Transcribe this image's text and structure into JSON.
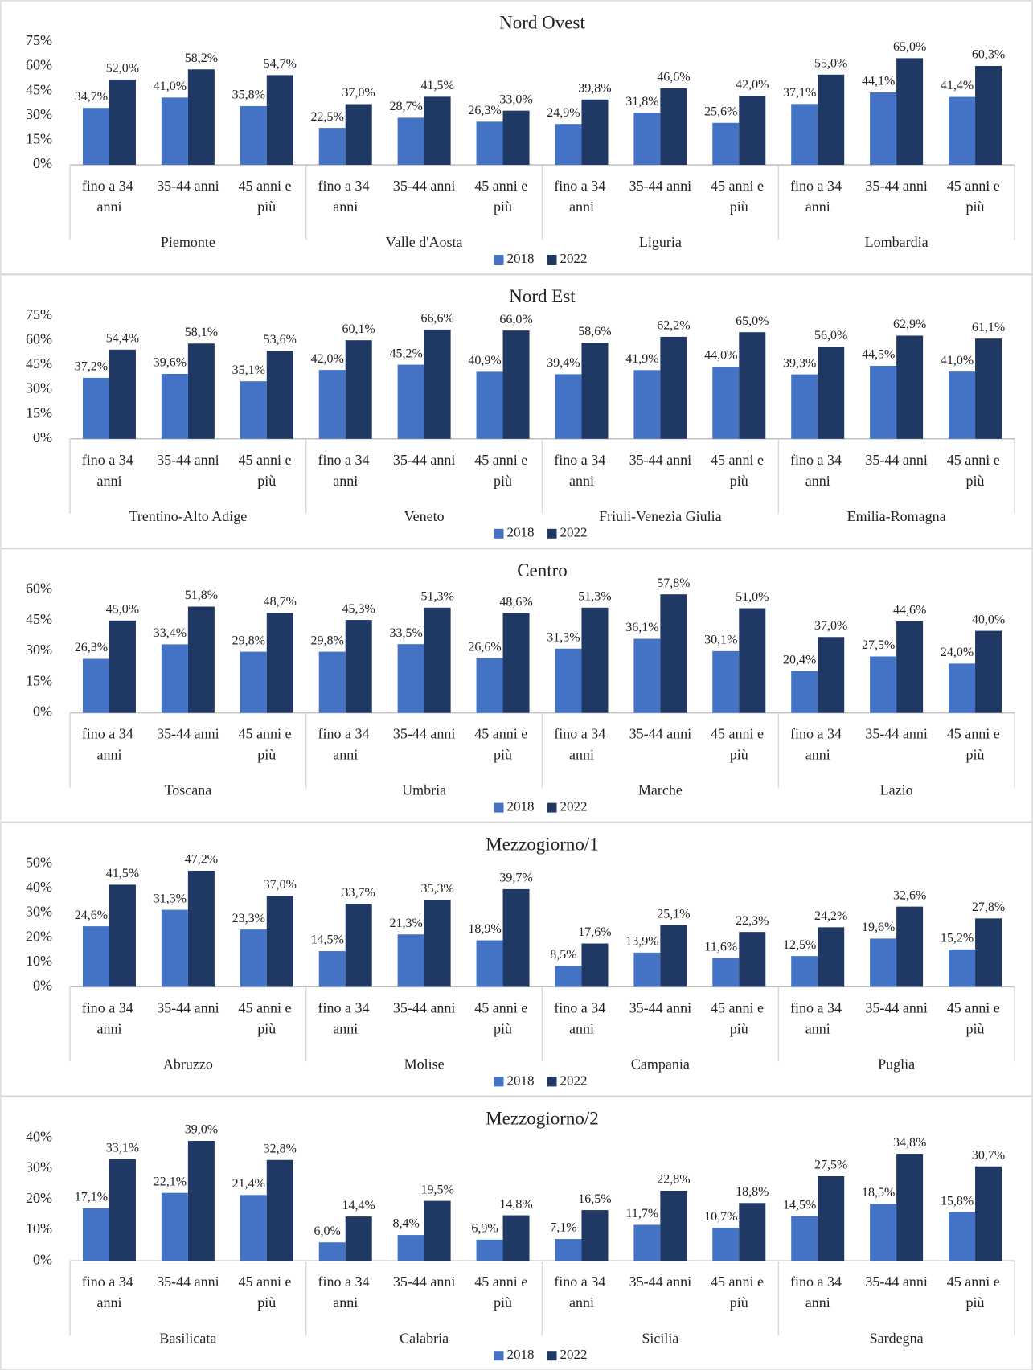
{
  "chart_data": [
    {
      "type": "bar",
      "title": "Nord Ovest",
      "legend": "bottom",
      "categories": [
        "fino a 34 anni",
        "35-44 anni",
        "45 anni e più",
        "fino a 34 anni",
        "35-44 anni",
        "45 anni e più",
        "fino a 34 anni",
        "35-44 anni",
        "45 anni e più",
        "fino a 34 anni",
        "35-44 anni",
        "45 anni e più"
      ],
      "groups": [
        "Piemonte",
        "Valle d'Aosta",
        "Liguria",
        "Lombardia"
      ],
      "ylim": [
        0,
        75
      ],
      "yticks": [
        {
          "value": 0,
          "label": "0%"
        },
        {
          "value": 15,
          "label": "15%"
        },
        {
          "value": 30,
          "label": "30%"
        },
        {
          "value": 45,
          "label": "45%"
        },
        {
          "value": 60,
          "label": "60%"
        },
        {
          "value": 75,
          "label": "75%"
        }
      ],
      "series": [
        {
          "name": "2018",
          "color": "#4472c4",
          "values": [
            34.7,
            41.0,
            35.8,
            22.5,
            28.7,
            26.3,
            24.9,
            31.8,
            25.6,
            37.1,
            44.1,
            41.4
          ],
          "value_labels": [
            "34,7%",
            "41,0%",
            "35,8%",
            "22,5%",
            "28,7%",
            "26,3%",
            "24,9%",
            "31,8%",
            "25,6%",
            "37,1%",
            "44,1%",
            "41,4%"
          ]
        },
        {
          "name": "2022",
          "color": "#203864",
          "values": [
            52.0,
            58.2,
            54.7,
            37.0,
            41.5,
            33.0,
            39.8,
            46.6,
            42.0,
            55.0,
            65.0,
            60.3
          ],
          "value_labels": [
            "52,0%",
            "58,2%",
            "54,7%",
            "37,0%",
            "41,5%",
            "33,0%",
            "39,8%",
            "46,6%",
            "42,0%",
            "55,0%",
            "65,0%",
            "60,3%"
          ]
        }
      ]
    },
    {
      "type": "bar",
      "title": "Nord Est",
      "legend": "bottom",
      "categories": [
        "fino a 34 anni",
        "35-44 anni",
        "45 anni e più",
        "fino a 34 anni",
        "35-44 anni",
        "45 anni e più",
        "fino a 34 anni",
        "35-44 anni",
        "45 anni e più",
        "fino a 34 anni",
        "35-44 anni",
        "45 anni e più"
      ],
      "groups": [
        "Trentino-Alto Adige",
        "Veneto",
        "Friuli-Venezia Giulia",
        "Emilia-Romagna"
      ],
      "ylim": [
        0,
        75
      ],
      "yticks": [
        {
          "value": 0,
          "label": "0%"
        },
        {
          "value": 15,
          "label": "15%"
        },
        {
          "value": 30,
          "label": "30%"
        },
        {
          "value": 45,
          "label": "45%"
        },
        {
          "value": 60,
          "label": "60%"
        },
        {
          "value": 75,
          "label": "75%"
        }
      ],
      "series": [
        {
          "name": "2018",
          "color": "#4472c4",
          "values": [
            37.2,
            39.6,
            35.1,
            42.0,
            45.2,
            40.9,
            39.4,
            41.9,
            44.0,
            39.3,
            44.5,
            41.0
          ],
          "value_labels": [
            "37,2%",
            "39,6%",
            "35,1%",
            "42,0%",
            "45,2%",
            "40,9%",
            "39,4%",
            "41,9%",
            "44,0%",
            "39,3%",
            "44,5%",
            "41,0%"
          ]
        },
        {
          "name": "2022",
          "color": "#203864",
          "values": [
            54.4,
            58.1,
            53.6,
            60.1,
            66.6,
            66.0,
            58.6,
            62.2,
            65.0,
            56.0,
            62.9,
            61.1
          ],
          "value_labels": [
            "54,4%",
            "58,1%",
            "53,6%",
            "60,1%",
            "66,6%",
            "66,0%",
            "58,6%",
            "62,2%",
            "65,0%",
            "56,0%",
            "62,9%",
            "61,1%"
          ]
        }
      ]
    },
    {
      "type": "bar",
      "title": "Centro",
      "legend": "bottom",
      "categories": [
        "fino a 34 anni",
        "35-44 anni",
        "45 anni e più",
        "fino a 34 anni",
        "35-44 anni",
        "45 anni e più",
        "fino a 34 anni",
        "35-44 anni",
        "45 anni e più",
        "fino a 34 anni",
        "35-44 anni",
        "45 anni e più"
      ],
      "groups": [
        "Toscana",
        "Umbria",
        "Marche",
        "Lazio"
      ],
      "ylim": [
        0,
        60
      ],
      "yticks": [
        {
          "value": 0,
          "label": "0%"
        },
        {
          "value": 15,
          "label": "15%"
        },
        {
          "value": 30,
          "label": "30%"
        },
        {
          "value": 45,
          "label": "45%"
        },
        {
          "value": 60,
          "label": "60%"
        }
      ],
      "series": [
        {
          "name": "2018",
          "color": "#4472c4",
          "values": [
            26.3,
            33.4,
            29.8,
            29.8,
            33.5,
            26.6,
            31.3,
            36.1,
            30.1,
            20.4,
            27.5,
            24.0
          ],
          "value_labels": [
            "26,3%",
            "33,4%",
            "29,8%",
            "29,8%",
            "33,5%",
            "26,6%",
            "31,3%",
            "36,1%",
            "30,1%",
            "20,4%",
            "27,5%",
            "24,0%"
          ]
        },
        {
          "name": "2022",
          "color": "#203864",
          "values": [
            45.0,
            51.8,
            48.7,
            45.3,
            51.3,
            48.6,
            51.3,
            57.8,
            51.0,
            37.0,
            44.6,
            40.0
          ],
          "value_labels": [
            "45,0%",
            "51,8%",
            "48,7%",
            "45,3%",
            "51,3%",
            "48,6%",
            "51,3%",
            "57,8%",
            "51,0%",
            "37,0%",
            "44,6%",
            "40,0%"
          ]
        }
      ]
    },
    {
      "type": "bar",
      "title": "Mezzogiorno/1",
      "legend": "bottom",
      "categories": [
        "fino a 34 anni",
        "35-44 anni",
        "45 anni e più",
        "fino a 34 anni",
        "35-44 anni",
        "45 anni e più",
        "fino a 34 anni",
        "35-44 anni",
        "45 anni e più",
        "fino a 34 anni",
        "35-44 anni",
        "45 anni e più"
      ],
      "groups": [
        "Abruzzo",
        "Molise",
        "Campania",
        "Puglia"
      ],
      "ylim": [
        0,
        50
      ],
      "yticks": [
        {
          "value": 0,
          "label": "0%"
        },
        {
          "value": 10,
          "label": "10%"
        },
        {
          "value": 20,
          "label": "20%"
        },
        {
          "value": 30,
          "label": "30%"
        },
        {
          "value": 40,
          "label": "40%"
        },
        {
          "value": 50,
          "label": "50%"
        }
      ],
      "series": [
        {
          "name": "2018",
          "color": "#4472c4",
          "values": [
            24.6,
            31.3,
            23.3,
            14.5,
            21.3,
            18.9,
            8.5,
            13.9,
            11.6,
            12.5,
            19.6,
            15.2
          ],
          "value_labels": [
            "24,6%",
            "31,3%",
            "23,3%",
            "14,5%",
            "21,3%",
            "18,9%",
            "8,5%",
            "13,9%",
            "11,6%",
            "12,5%",
            "19,6%",
            "15,2%"
          ]
        },
        {
          "name": "2022",
          "color": "#203864",
          "values": [
            41.5,
            47.2,
            37.0,
            33.7,
            35.3,
            39.7,
            17.6,
            25.1,
            22.3,
            24.2,
            32.6,
            27.8
          ],
          "value_labels": [
            "41,5%",
            "47,2%",
            "37,0%",
            "33,7%",
            "35,3%",
            "39,7%",
            "17,6%",
            "25,1%",
            "22,3%",
            "24,2%",
            "32,6%",
            "27,8%"
          ]
        }
      ]
    },
    {
      "type": "bar",
      "title": "Mezzogiorno/2",
      "legend": "bottom",
      "categories": [
        "fino a 34 anni",
        "35-44 anni",
        "45 anni e più",
        "fino a 34 anni",
        "35-44 anni",
        "45 anni e più",
        "fino a 34 anni",
        "35-44 anni",
        "45 anni e più",
        "fino a 34 anni",
        "35-44 anni",
        "45 anni e più"
      ],
      "groups": [
        "Basilicata",
        "Calabria",
        "Sicilia",
        "Sardegna"
      ],
      "ylim": [
        0,
        40
      ],
      "yticks": [
        {
          "value": 0,
          "label": "0%"
        },
        {
          "value": 10,
          "label": "10%"
        },
        {
          "value": 20,
          "label": "20%"
        },
        {
          "value": 30,
          "label": "30%"
        },
        {
          "value": 40,
          "label": "40%"
        }
      ],
      "series": [
        {
          "name": "2018",
          "color": "#4472c4",
          "values": [
            17.1,
            22.1,
            21.4,
            6.0,
            8.4,
            6.9,
            7.1,
            11.7,
            10.7,
            14.5,
            18.5,
            15.8
          ],
          "value_labels": [
            "17,1%",
            "22,1%",
            "21,4%",
            "6,0%",
            "8,4%",
            "6,9%",
            "7,1%",
            "11,7%",
            "10,7%",
            "14,5%",
            "18,5%",
            "15,8%"
          ]
        },
        {
          "name": "2022",
          "color": "#203864",
          "values": [
            33.1,
            39.0,
            32.8,
            14.4,
            19.5,
            14.8,
            16.5,
            22.8,
            18.8,
            27.5,
            34.8,
            30.7
          ],
          "value_labels": [
            "33,1%",
            "39,0%",
            "32,8%",
            "14,4%",
            "19,5%",
            "14,8%",
            "16,5%",
            "22,8%",
            "18,8%",
            "27,5%",
            "34,8%",
            "30,7%"
          ]
        }
      ]
    }
  ]
}
